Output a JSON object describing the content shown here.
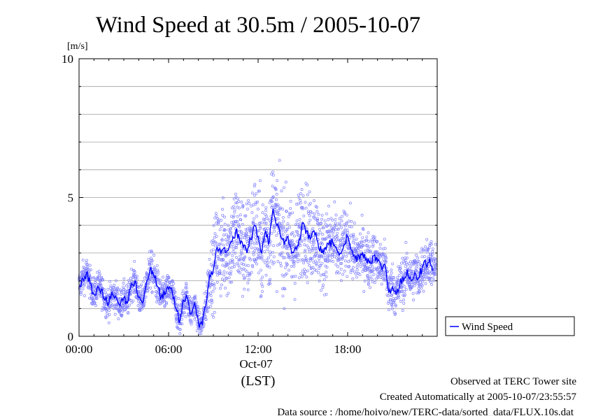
{
  "chart_data": {
    "type": "scatter",
    "title": "Wind Speed at 30.5m / 2005-10-07",
    "ylabel": "[m/s]",
    "xlabel": "(LST)",
    "date_label": "Oct-07",
    "ylim": [
      0,
      10
    ],
    "xlim_hours": [
      0,
      24
    ],
    "y_ticks": [
      0,
      5,
      10
    ],
    "y_gridlines": [
      1,
      2,
      3,
      4,
      5,
      6,
      7,
      8,
      9,
      10
    ],
    "x_ticks": [
      {
        "hour": 0,
        "label": "00:00"
      },
      {
        "hour": 6,
        "label": "06:00"
      },
      {
        "hour": 12,
        "label": "12:00"
      },
      {
        "hour": 18,
        "label": "18:00"
      }
    ],
    "legend": {
      "position": "right",
      "entries": [
        "Wind Speed"
      ]
    },
    "series": [
      {
        "name": "Wind Speed",
        "kind": "line",
        "color": "#0000ff",
        "x_hours": [
          0.0,
          0.25,
          0.5,
          0.75,
          1.0,
          1.25,
          1.5,
          1.75,
          2.0,
          2.25,
          2.5,
          2.75,
          3.0,
          3.25,
          3.5,
          3.75,
          4.0,
          4.25,
          4.5,
          4.75,
          5.0,
          5.25,
          5.5,
          5.75,
          6.0,
          6.25,
          6.5,
          6.75,
          7.0,
          7.25,
          7.5,
          7.75,
          8.0,
          8.25,
          8.5,
          8.75,
          9.0,
          9.25,
          9.5,
          9.75,
          10.0,
          10.25,
          10.5,
          10.75,
          11.0,
          11.25,
          11.5,
          11.75,
          12.0,
          12.25,
          12.5,
          12.75,
          13.0,
          13.25,
          13.5,
          13.75,
          14.0,
          14.25,
          14.5,
          14.75,
          15.0,
          15.25,
          15.5,
          15.75,
          16.0,
          16.25,
          16.5,
          16.75,
          17.0,
          17.25,
          17.5,
          17.75,
          18.0,
          18.25,
          18.5,
          18.75,
          19.0,
          19.25,
          19.5,
          19.75,
          20.0,
          20.25,
          20.5,
          20.75,
          21.0,
          21.25,
          21.5,
          21.75,
          22.0,
          22.25,
          22.5,
          22.75,
          23.0,
          23.25,
          23.5,
          23.75
        ],
        "values": [
          1.8,
          2.1,
          2.3,
          1.9,
          1.5,
          1.8,
          1.7,
          1.3,
          1.2,
          1.5,
          1.4,
          1.1,
          1.4,
          1.2,
          1.9,
          2.0,
          1.4,
          1.2,
          1.9,
          2.4,
          2.2,
          1.8,
          1.4,
          1.5,
          1.7,
          1.6,
          1.0,
          0.5,
          1.3,
          1.4,
          0.8,
          1.2,
          0.5,
          0.4,
          1.1,
          2.2,
          2.4,
          3.2,
          3.0,
          3.2,
          3.1,
          3.4,
          3.8,
          3.5,
          3.2,
          3.0,
          3.5,
          4.0,
          3.6,
          3.0,
          3.8,
          3.4,
          4.6,
          4.0,
          3.6,
          3.3,
          3.6,
          3.0,
          3.2,
          3.5,
          4.1,
          3.8,
          3.5,
          3.8,
          3.4,
          3.0,
          3.2,
          3.3,
          3.4,
          3.2,
          3.0,
          3.3,
          3.6,
          3.1,
          2.8,
          2.9,
          3.0,
          2.8,
          2.7,
          2.9,
          2.7,
          2.5,
          2.6,
          1.6,
          1.8,
          1.5,
          1.9,
          2.0,
          2.4,
          2.0,
          2.3,
          2.1,
          2.5,
          2.6,
          2.8,
          2.4
        ]
      },
      {
        "name": "Wind Speed",
        "kind": "scatter",
        "color": "#8080ff",
        "spread_values": [
          0.4,
          0.4,
          0.4,
          0.4,
          0.4,
          0.4,
          0.4,
          0.4,
          0.4,
          0.4,
          0.4,
          0.4,
          0.4,
          0.4,
          0.4,
          0.4,
          0.4,
          0.4,
          0.4,
          0.5,
          0.5,
          0.5,
          0.4,
          0.4,
          0.4,
          0.4,
          0.4,
          0.4,
          0.4,
          0.4,
          0.4,
          0.4,
          0.3,
          0.3,
          0.5,
          0.8,
          1.0,
          1.1,
          1.2,
          1.2,
          1.2,
          1.2,
          1.3,
          1.3,
          1.3,
          1.3,
          1.3,
          1.3,
          1.3,
          1.3,
          1.3,
          1.3,
          1.3,
          1.3,
          1.3,
          1.3,
          1.2,
          1.2,
          1.2,
          1.2,
          1.2,
          1.2,
          1.1,
          1.1,
          1.1,
          1.0,
          1.0,
          1.0,
          0.9,
          0.9,
          0.9,
          0.8,
          0.8,
          0.8,
          0.8,
          0.7,
          0.7,
          0.7,
          0.7,
          0.6,
          0.6,
          0.6,
          0.6,
          0.6,
          0.6,
          0.6,
          0.6,
          0.6,
          0.6,
          0.6,
          0.6,
          0.6,
          0.6,
          0.6,
          0.6,
          0.6
        ]
      }
    ]
  },
  "footer": {
    "line1": "Observed at TERC Tower site",
    "line2": "Created Automatically at 2005-10-07/23:55:57",
    "line3": "Data source : /home/hoivo/new/TERC-data/sorted_data/FLUX.10s.dat"
  }
}
